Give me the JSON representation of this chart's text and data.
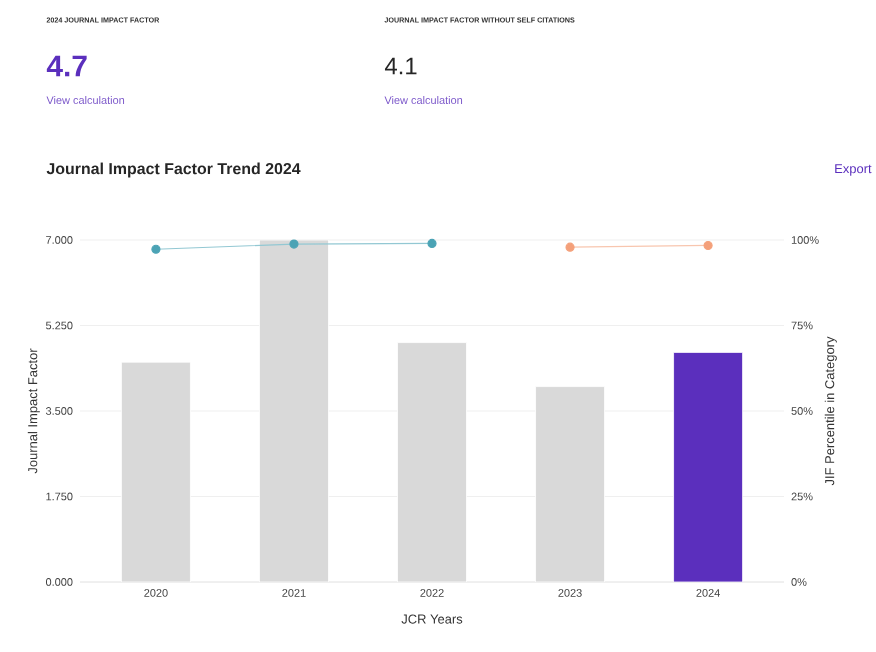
{
  "chart_data": {
    "type": "bar",
    "title": "Journal Impact Factor Trend 2024",
    "xlabel": "JCR Years",
    "ylabel": "Journal Impact Factor",
    "y2label": "JIF Percentile in Category",
    "categories": [
      "2020",
      "2021",
      "2022",
      "2023",
      "2024"
    ],
    "values": [
      4.5,
      7.0,
      4.9,
      4.0,
      4.7
    ],
    "colors": [
      "#d9d9d9",
      "#d9d9d9",
      "#d9d9d9",
      "#d9d9d9",
      "#5b2fbd"
    ],
    "series": [
      {
        "type": "line",
        "axis": "y2",
        "color": "#4ba3b5",
        "values": [
          97.3,
          98.8,
          99.0,
          null,
          null
        ]
      },
      {
        "type": "line",
        "axis": "y2",
        "color": "#f4a07a",
        "values": [
          null,
          null,
          null,
          97.9,
          98.4
        ]
      }
    ],
    "ylim": [
      0,
      7
    ],
    "yticks": [
      {
        "value": 0,
        "label": "0.000"
      },
      {
        "value": 1.75,
        "label": "1.750"
      },
      {
        "value": 3.5,
        "label": "3.500"
      },
      {
        "value": 5.25,
        "label": "5.250"
      },
      {
        "value": 7,
        "label": "7.000"
      }
    ],
    "y2lim": [
      0,
      100
    ],
    "y2ticks": [
      {
        "value": 0,
        "label": "0%"
      },
      {
        "value": 25,
        "label": "25%"
      },
      {
        "value": 50,
        "label": "50%"
      },
      {
        "value": 75,
        "label": "75%"
      },
      {
        "value": 100,
        "label": "100%"
      }
    ],
    "grid": "y",
    "marker": "circle",
    "line_style": "solid",
    "annotations": [
      "2024 JOURNAL IMPACT FACTOR",
      "4.7",
      "View calculation",
      "JOURNAL IMPACT FACTOR WITHOUT SELF CITATIONS",
      "4.1",
      "View calculation",
      "Export"
    ]
  }
}
